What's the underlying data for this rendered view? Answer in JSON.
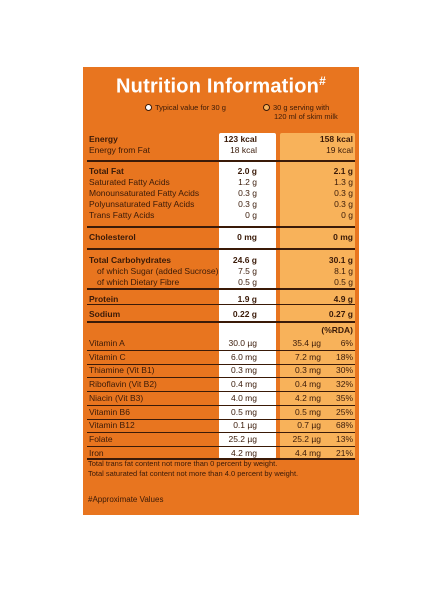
{
  "title": "Nutrition Information",
  "title_mark": "#",
  "legend": {
    "col1": "Typical value for 30 g",
    "col2_line1": "30 g serving with",
    "col2_line2": "120 ml of skim milk"
  },
  "headers": {
    "col1": "123 kcal",
    "col2": "158 kcal"
  },
  "rows": [
    {
      "label": "Energy",
      "v1": "123 kcal",
      "v2": "158 kcal",
      "bold": true
    },
    {
      "label": "Energy from Fat",
      "v1": "18 kcal",
      "v2": "19 kcal"
    },
    {
      "label": "Total Fat",
      "v1": "2.0 g",
      "v2": "2.1 g",
      "bold": true
    },
    {
      "label": "Saturated Fatty Acids",
      "v1": "1.2 g",
      "v2": "1.3 g"
    },
    {
      "label": "Monounsaturated Fatty Acids",
      "v1": "0.3 g",
      "v2": "0.3 g"
    },
    {
      "label": "Polyunsaturated Fatty Acids",
      "v1": "0.3 g",
      "v2": "0.3 g"
    },
    {
      "label": "Trans Fatty Acids",
      "v1": "0 g",
      "v2": "0 g"
    },
    {
      "label": "Cholesterol",
      "v1": "0 mg",
      "v2": "0 mg",
      "bold": true
    },
    {
      "label": "Total Carbohydrates",
      "v1": "24.6 g",
      "v2": "30.1 g",
      "bold": true
    },
    {
      "label": "of which Sugar (added Sucrose)",
      "v1": "7.5 g",
      "v2": "8.1 g",
      "sub": true
    },
    {
      "label": "of which Dietary Fibre",
      "v1": "0.5 g",
      "v2": "0.5 g",
      "sub": true
    },
    {
      "label": "Protein",
      "v1": "1.9 g",
      "v2": "4.9 g",
      "bold": true
    },
    {
      "label": "Sodium",
      "v1": "0.22 g",
      "v2": "0.27 g",
      "bold": true
    }
  ],
  "rda_header": "(%RDA)",
  "vitamins": [
    {
      "label": "Vitamin A",
      "v1": "30.0 µg",
      "v2": "35.4 µg",
      "rda": "6%"
    },
    {
      "label": "Vitamin C",
      "v1": "6.0 mg",
      "v2": "7.2 mg",
      "rda": "18%"
    },
    {
      "label": "Thiamine (Vit B1)",
      "v1": "0.3 mg",
      "v2": "0.3 mg",
      "rda": "30%"
    },
    {
      "label": "Riboflavin (Vit B2)",
      "v1": "0.4 mg",
      "v2": "0.4 mg",
      "rda": "32%"
    },
    {
      "label": "Niacin (Vit B3)",
      "v1": "4.0 mg",
      "v2": "4.2 mg",
      "rda": "35%"
    },
    {
      "label": "Vitamin B6",
      "v1": "0.5 mg",
      "v2": "0.5 mg",
      "rda": "25%"
    },
    {
      "label": "Vitamin B12",
      "v1": "0.1 µg",
      "v2": "0.7 µg",
      "rda": "68%"
    },
    {
      "label": "Folate",
      "v1": "25.2 µg",
      "v2": "25.2 µg",
      "rda": "13%"
    },
    {
      "label": "Iron",
      "v1": "4.2 mg",
      "v2": "4.4 mg",
      "rda": "21%"
    }
  ],
  "notes": [
    "Total trans fat content not more than 0 percent by weight.",
    "Total saturated fat content not more than 4.0 percent by weight."
  ],
  "footnote": "#Approximate Values",
  "colors": {
    "panel": "#e8751f",
    "col2": "#f8b25a",
    "text": "#3a1a08"
  }
}
